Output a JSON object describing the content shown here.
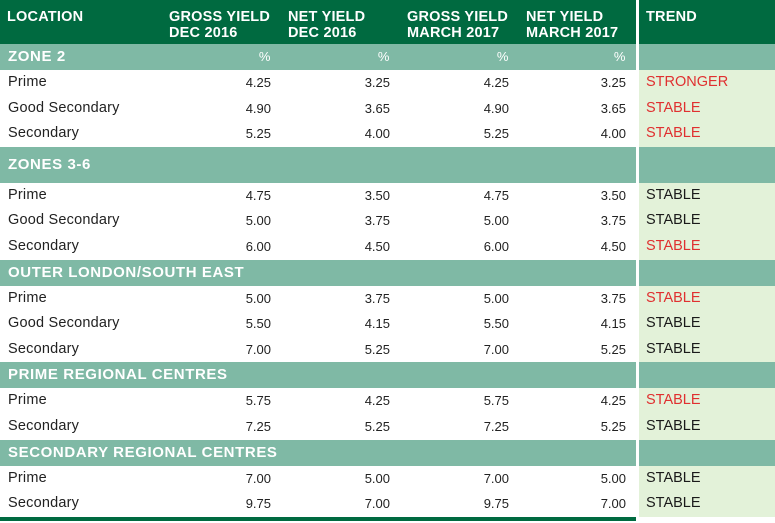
{
  "header": {
    "location": "LOCATION",
    "gross_dec": [
      "GROSS YIELD",
      "DEC 2016"
    ],
    "net_dec": [
      "NET YIELD",
      "DEC 2016"
    ],
    "gross_mar": [
      "GROSS YIELD",
      "MARCH 2017"
    ],
    "net_mar": [
      "NET YIELD",
      "MARCH 2017"
    ],
    "trend": "TREND"
  },
  "colors": {
    "header_bg": "#006a40",
    "section_bg": "#7fb9a5",
    "trend_bg": "#e3f2d9",
    "trend_red": "#e03030"
  },
  "sections": [
    {
      "name": "ZONE 2",
      "units": [
        "%",
        "%",
        "%",
        "%"
      ],
      "rows": [
        {
          "label": "Prime",
          "v": [
            "4.25",
            "3.25",
            "4.25",
            "3.25"
          ],
          "trend": "STRONGER",
          "red": true
        },
        {
          "label": "Good Secondary",
          "v": [
            "4.90",
            "3.65",
            "4.90",
            "3.65"
          ],
          "trend": "STABLE",
          "red": true
        },
        {
          "label": "Secondary",
          "v": [
            "5.25",
            "4.00",
            "5.25",
            "4.00"
          ],
          "trend": "STABLE",
          "red": true
        }
      ]
    },
    {
      "name": "ZONES 3-6",
      "units": [],
      "rows": [
        {
          "label": "Prime",
          "v": [
            "4.75",
            "3.50",
            "4.75",
            "3.50"
          ],
          "trend": "STABLE",
          "red": false
        },
        {
          "label": "Good Secondary",
          "v": [
            "5.00",
            "3.75",
            "5.00",
            "3.75"
          ],
          "trend": "STABLE",
          "red": false
        },
        {
          "label": "Secondary",
          "v": [
            "6.00",
            "4.50",
            "6.00",
            "4.50"
          ],
          "trend": "STABLE",
          "red": true
        }
      ]
    },
    {
      "name": "OUTER LONDON/SOUTH EAST",
      "units": [],
      "rows": [
        {
          "label": "Prime",
          "v": [
            "5.00",
            "3.75",
            "5.00",
            "3.75"
          ],
          "trend": "STABLE",
          "red": true
        },
        {
          "label": "Good Secondary",
          "v": [
            "5.50",
            "4.15",
            "5.50",
            "4.15"
          ],
          "trend": "STABLE",
          "red": false
        },
        {
          "label": "Secondary",
          "v": [
            "7.00",
            "5.25",
            "7.00",
            "5.25"
          ],
          "trend": "STABLE",
          "red": false
        }
      ]
    },
    {
      "name": "PRIME REGIONAL CENTRES",
      "units": [],
      "rows": [
        {
          "label": "Prime",
          "v": [
            "5.75",
            "4.25",
            "5.75",
            "4.25"
          ],
          "trend": "STABLE",
          "red": true
        },
        {
          "label": "Secondary",
          "v": [
            "7.25",
            "5.25",
            "7.25",
            "5.25"
          ],
          "trend": "STABLE",
          "red": false
        }
      ]
    },
    {
      "name": "SECONDARY REGIONAL CENTRES",
      "units": [],
      "rows": [
        {
          "label": "Prime",
          "v": [
            "7.00",
            "5.00",
            "7.00",
            "5.00"
          ],
          "trend": "STABLE",
          "red": false
        },
        {
          "label": "Secondary",
          "v": [
            "9.75",
            "7.00",
            "9.75",
            "7.00"
          ],
          "trend": "STABLE",
          "red": false
        }
      ]
    }
  ]
}
